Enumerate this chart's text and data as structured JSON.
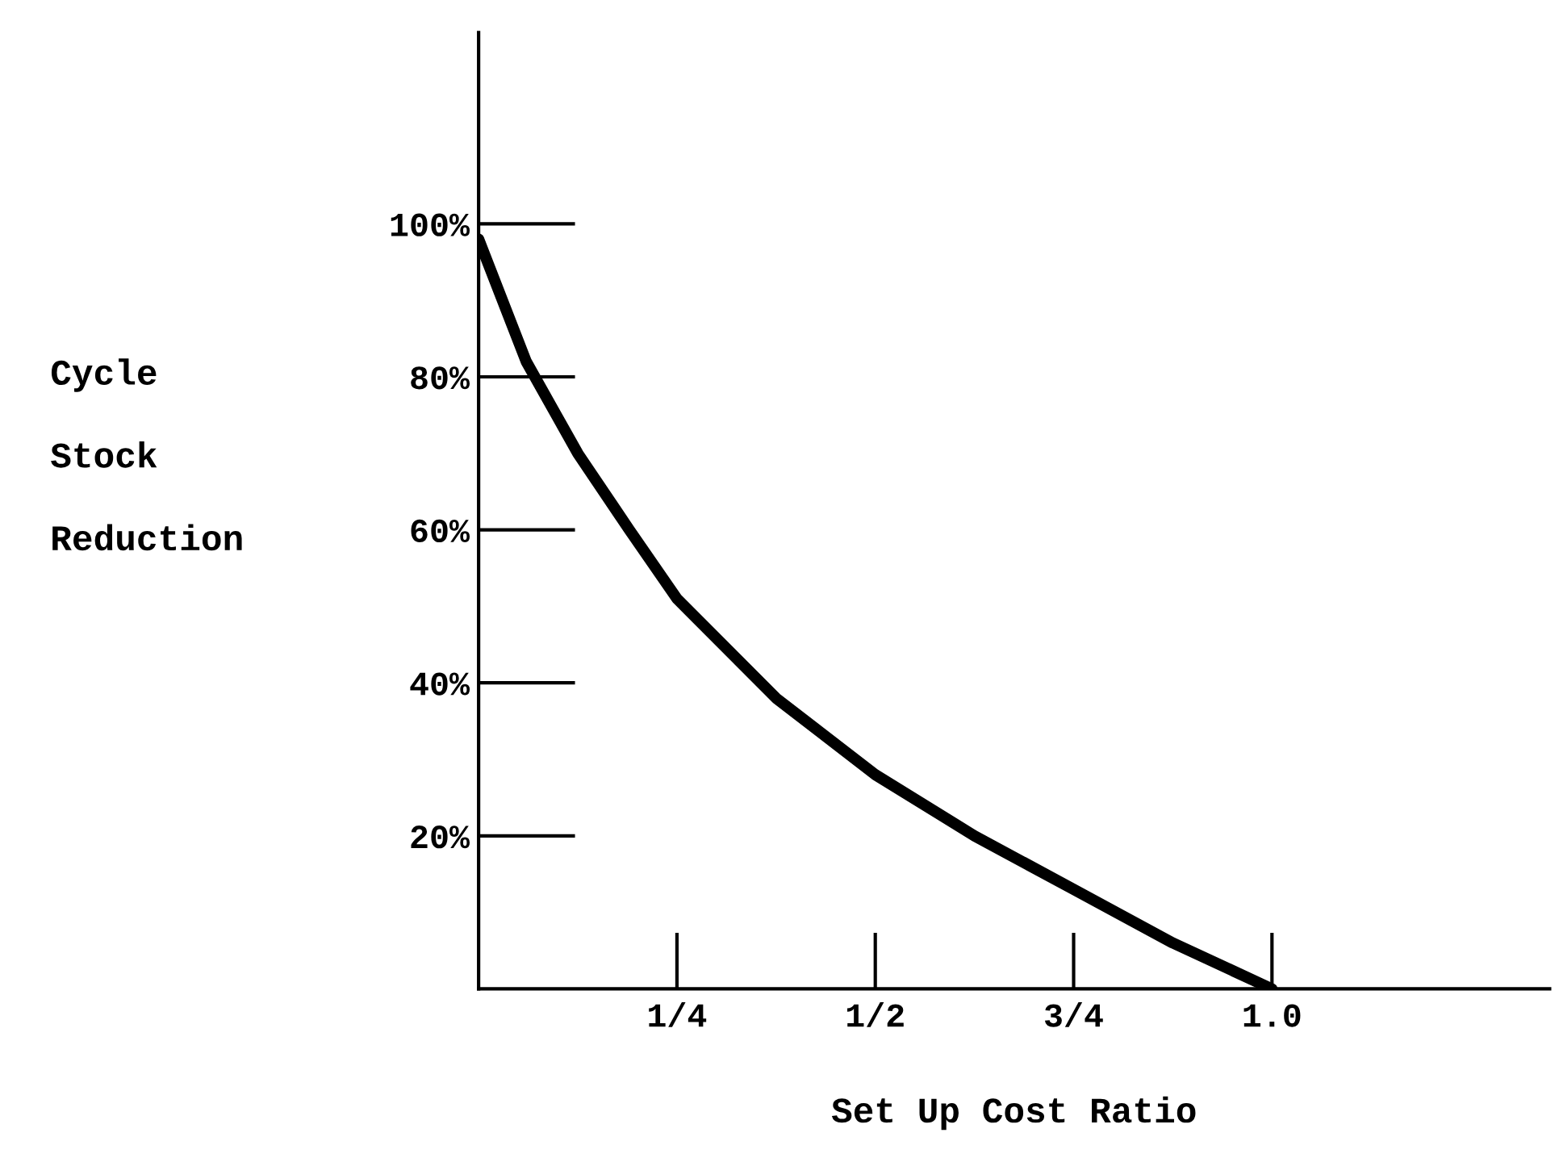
{
  "chart_data": {
    "type": "line",
    "xlabel": "Set Up Cost Ratio",
    "ylabel": "Cycle\nStock\nReduction",
    "x": [
      0,
      0.06,
      0.125,
      0.19,
      0.25,
      0.375,
      0.5,
      0.625,
      0.75,
      0.875,
      1.0
    ],
    "series": [
      {
        "color": "#000000",
        "values": [
          98,
          82,
          70,
          60,
          51,
          38,
          28,
          20,
          13,
          6,
          0
        ]
      }
    ],
    "xlim": [
      0,
      1.35
    ],
    "ylim": [
      0,
      125
    ],
    "xticks": [
      {
        "value": 0.25,
        "label": "1/4"
      },
      {
        "value": 0.5,
        "label": "1/2"
      },
      {
        "value": 0.75,
        "label": "3/4"
      },
      {
        "value": 1.0,
        "label": "1.0"
      }
    ],
    "yticks": [
      {
        "value": 20,
        "label": "20%"
      },
      {
        "value": 40,
        "label": "40%"
      },
      {
        "value": 60,
        "label": "60%"
      },
      {
        "value": 80,
        "label": "80%"
      },
      {
        "value": 100,
        "label": "100%"
      }
    ],
    "grid": false,
    "legend": false,
    "line_style": "solid",
    "marker": "none"
  }
}
